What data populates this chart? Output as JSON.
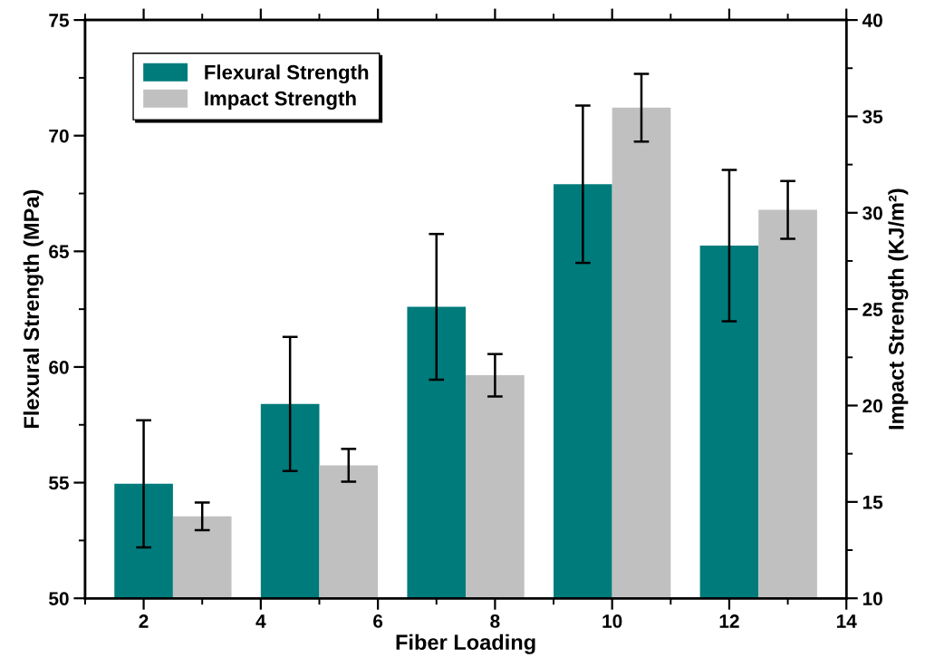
{
  "chart_data": {
    "type": "bar",
    "xlabel": "Fiber Loading",
    "ylabel": "Flexural Strength (MPa)",
    "y2label": "Impact Strength (KJ/m²)",
    "series": [
      {
        "name": "Flexural Strength",
        "color": "#007b7b",
        "x": [
          2,
          4.5,
          7,
          9.5,
          12
        ],
        "values": [
          54.95,
          58.4,
          62.6,
          67.9,
          65.25
        ],
        "errors": [
          2.75,
          2.9,
          3.15,
          3.4,
          3.27
        ]
      },
      {
        "name": "Impact Strength",
        "color": "#c0c0c0",
        "axis": "y2",
        "x": [
          3,
          5.5,
          8,
          10.5,
          13
        ],
        "values": [
          14.25,
          16.9,
          21.57,
          35.45,
          30.15
        ],
        "errors": [
          0.72,
          0.85,
          1.1,
          1.76,
          1.5
        ]
      }
    ],
    "xlim": [
      1,
      14
    ],
    "xticks": [
      {
        "value": 1,
        "label": null
      },
      2,
      {
        "value": 3,
        "label": null
      },
      4,
      {
        "value": 5,
        "label": null
      },
      6,
      {
        "value": 7,
        "label": null
      },
      8,
      {
        "value": 9,
        "label": null
      },
      10,
      {
        "value": 11,
        "label": null
      },
      12,
      {
        "value": 13,
        "label": null
      },
      14
    ],
    "ylim": [
      50,
      75
    ],
    "yticks": [
      50,
      {
        "value": 52.5,
        "label": null
      },
      55,
      {
        "value": 57.5,
        "label": null
      },
      60,
      {
        "value": 62.5,
        "label": null
      },
      65,
      {
        "value": 67.5,
        "label": null
      },
      70,
      {
        "value": 72.5,
        "label": null
      },
      75
    ],
    "y2lim": [
      10,
      40
    ],
    "y2ticks": [
      10,
      {
        "value": 12.5,
        "label": null
      },
      15,
      {
        "value": 17.5,
        "label": null
      },
      20,
      {
        "value": 22.5,
        "label": null
      },
      25,
      {
        "value": 27.5,
        "label": null
      },
      30,
      {
        "value": 32.5,
        "label": null
      },
      35,
      {
        "value": 37.5,
        "label": null
      },
      40
    ],
    "legend": "top left",
    "grid": false
  }
}
